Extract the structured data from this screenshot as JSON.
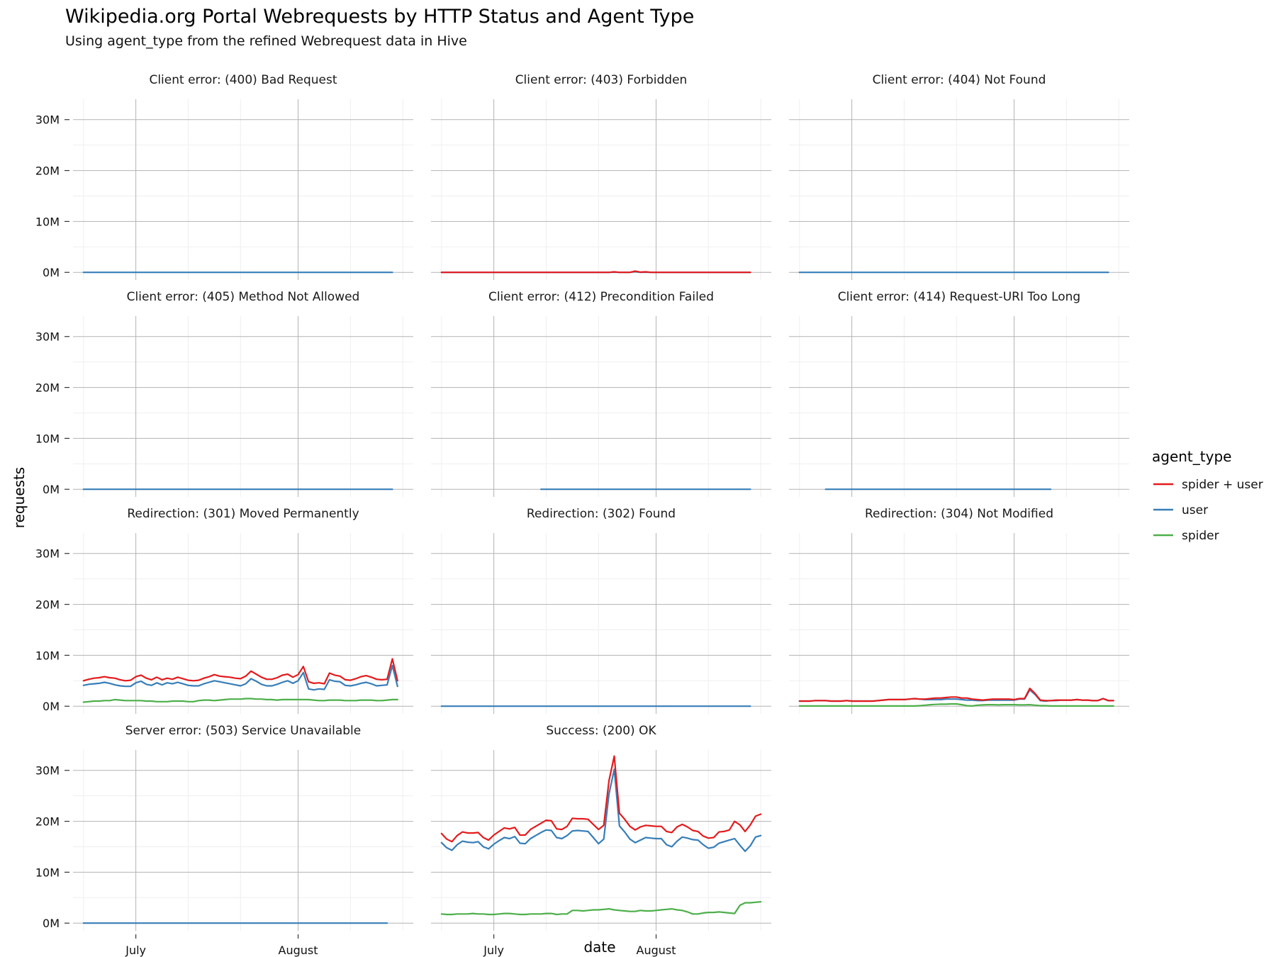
{
  "chart_data": {
    "type": "line",
    "title": "Wikipedia.org Portal Webrequests by HTTP Status and Agent Type",
    "subtitle": "Using agent_type from the refined Webrequest data in Hive",
    "xlabel": "date",
    "ylabel": "requests",
    "x_ticks": [
      "July",
      "August"
    ],
    "y_ticks": [
      "0M",
      "10M",
      "20M",
      "30M"
    ],
    "ylim": [
      -1.5,
      34
    ],
    "xlim_days": [
      -12,
      53
    ],
    "grid": true,
    "legend": {
      "title": "agent_type",
      "placement": "right",
      "entries": [
        {
          "name": "spider + user",
          "color": "#e41a1c"
        },
        {
          "name": "user",
          "color": "#377eb8"
        },
        {
          "name": "spider",
          "color": "#4daf4a"
        }
      ]
    },
    "panels": [
      {
        "label": "Client error: (400) Bad Request",
        "start": -10,
        "series": {
          "user": [
            0,
            0,
            0,
            0,
            0,
            0,
            0,
            0,
            0,
            0,
            0,
            0,
            0,
            0,
            0,
            0,
            0,
            0,
            0,
            0,
            0,
            0,
            0,
            0,
            0,
            0,
            0,
            0,
            0,
            0,
            0,
            0,
            0,
            0,
            0,
            0,
            0,
            0,
            0,
            0,
            0,
            0,
            0,
            0,
            0,
            0,
            0,
            0,
            0,
            0,
            0,
            0,
            0,
            0,
            0,
            0,
            0,
            0,
            0,
            0
          ]
        }
      },
      {
        "label": "Client error: (403) Forbidden",
        "start": -10,
        "series": {
          "spider + user": [
            0,
            0,
            0,
            0,
            0,
            0,
            0,
            0,
            0,
            0,
            0,
            0,
            0,
            0,
            0,
            0,
            0,
            0,
            0,
            0,
            0,
            0,
            0,
            0,
            0,
            0,
            0,
            0,
            0,
            0,
            0,
            0,
            0,
            0.1,
            0,
            0,
            0,
            0.25,
            0.05,
            0.1,
            0,
            0,
            0,
            0,
            0,
            0,
            0,
            0,
            0,
            0,
            0,
            0,
            0,
            0,
            0,
            0,
            0,
            0,
            0,
            0
          ],
          "user": [
            0,
            0,
            0,
            0,
            0,
            0,
            0,
            0,
            0,
            0,
            0,
            0,
            0,
            0,
            0,
            0,
            0,
            0,
            0,
            0,
            0,
            0,
            0,
            0,
            0,
            0,
            0,
            0,
            0,
            0,
            0,
            0,
            0,
            0.05,
            0,
            0,
            0,
            0.15,
            0,
            0.05,
            0,
            0,
            0,
            0,
            0,
            0,
            0,
            0,
            0,
            0,
            0,
            0,
            0,
            0,
            0,
            0,
            0,
            0,
            0,
            0
          ]
        }
      },
      {
        "label": "Client error: (404) Not Found",
        "start": -10,
        "series": {
          "user": [
            0,
            0,
            0,
            0,
            0,
            0,
            0,
            0,
            0,
            0,
            0,
            0,
            0,
            0,
            0,
            0,
            0,
            0,
            0,
            0,
            0,
            0,
            0,
            0,
            0,
            0,
            0,
            0,
            0,
            0,
            0,
            0,
            0,
            0,
            0,
            0,
            0,
            0,
            0,
            0,
            0,
            0,
            0,
            0,
            0,
            0,
            0,
            0,
            0,
            0,
            0,
            0,
            0,
            0,
            0,
            0,
            0,
            0,
            0,
            0
          ]
        }
      },
      {
        "label": "Client error: (405) Method Not Allowed",
        "start": -10,
        "series": {
          "user": [
            0,
            0,
            0,
            0,
            0,
            0,
            0,
            0,
            0,
            0,
            0,
            0,
            0,
            0,
            0,
            0,
            0,
            0,
            0,
            0,
            0,
            0,
            0,
            0,
            0,
            0,
            0,
            0,
            0,
            0,
            0,
            0,
            0,
            0,
            0,
            0,
            0,
            0,
            0,
            0,
            0,
            0,
            0,
            0,
            0,
            0,
            0,
            0,
            0,
            0,
            0,
            0,
            0,
            0,
            0,
            0,
            0,
            0,
            0,
            0
          ]
        }
      },
      {
        "label": "Client error: (412) Precondition Failed",
        "start": 9,
        "series": {
          "user": [
            0,
            0,
            0,
            0,
            0,
            0,
            0,
            0,
            0,
            0,
            0,
            0,
            0,
            0,
            0,
            0,
            0,
            0,
            0,
            0,
            0,
            0,
            0,
            0,
            0,
            0,
            0,
            0,
            0,
            0,
            0,
            0,
            0,
            0,
            0,
            0,
            0,
            0,
            0,
            0,
            0
          ]
        }
      },
      {
        "label": "Client error: (414) Request-URI Too Long",
        "start": -5,
        "series": {
          "user": [
            0,
            0,
            0,
            0,
            0,
            0,
            0,
            0,
            0,
            0,
            0,
            0,
            0,
            0,
            0,
            0,
            0,
            0,
            0,
            0,
            0,
            0,
            0,
            0,
            0,
            0,
            0,
            0,
            0,
            0,
            0,
            0,
            0,
            0,
            0,
            0,
            0,
            0,
            0,
            0,
            0,
            0,
            0,
            0
          ]
        }
      },
      {
        "label": "Redirection: (301) Moved Permanently",
        "start": -10,
        "series": {
          "spider + user": [
            5.0,
            5.3,
            5.5,
            5.6,
            5.8,
            5.6,
            5.5,
            5.2,
            5.0,
            5.1,
            5.8,
            6.1,
            5.5,
            5.2,
            5.7,
            5.2,
            5.5,
            5.3,
            5.7,
            5.4,
            5.1,
            5.0,
            5.1,
            5.5,
            5.8,
            6.2,
            5.9,
            5.8,
            5.7,
            5.5,
            5.4,
            5.9,
            6.9,
            6.3,
            5.7,
            5.3,
            5.3,
            5.6,
            6.1,
            6.3,
            5.7,
            6.2,
            7.8,
            4.8,
            4.5,
            4.6,
            4.4,
            6.5,
            6.1,
            5.9,
            5.2,
            5.1,
            5.4,
            5.8,
            6.0,
            5.7,
            5.3,
            5.2,
            5.3,
            9.3,
            5.0
          ],
          "user": [
            4.1,
            4.3,
            4.4,
            4.5,
            4.7,
            4.5,
            4.2,
            4.0,
            3.9,
            3.9,
            4.6,
            4.9,
            4.3,
            4.1,
            4.6,
            4.2,
            4.6,
            4.4,
            4.7,
            4.4,
            4.1,
            4.0,
            4.0,
            4.4,
            4.7,
            5.0,
            4.8,
            4.6,
            4.4,
            4.2,
            4.0,
            4.4,
            5.4,
            4.9,
            4.3,
            4.0,
            4.0,
            4.3,
            4.7,
            5.0,
            4.5,
            5.0,
            6.6,
            3.4,
            3.2,
            3.4,
            3.3,
            5.2,
            4.9,
            4.8,
            4.1,
            4.0,
            4.2,
            4.5,
            4.7,
            4.4,
            4.0,
            4.1,
            4.2,
            8.0,
            3.9
          ],
          "spider": [
            0.8,
            0.9,
            1.0,
            1.0,
            1.1,
            1.1,
            1.3,
            1.2,
            1.1,
            1.1,
            1.1,
            1.1,
            1.0,
            1.0,
            0.9,
            0.9,
            0.9,
            1.0,
            1.0,
            1.0,
            0.9,
            0.9,
            1.1,
            1.2,
            1.2,
            1.1,
            1.2,
            1.3,
            1.4,
            1.4,
            1.4,
            1.5,
            1.5,
            1.4,
            1.4,
            1.3,
            1.3,
            1.2,
            1.3,
            1.3,
            1.3,
            1.3,
            1.3,
            1.3,
            1.2,
            1.1,
            1.1,
            1.2,
            1.2,
            1.2,
            1.1,
            1.1,
            1.1,
            1.2,
            1.2,
            1.2,
            1.1,
            1.1,
            1.2,
            1.3,
            1.3
          ]
        }
      },
      {
        "label": "Redirection: (302) Found",
        "start": -10,
        "series": {
          "user": [
            0,
            0,
            0,
            0,
            0,
            0,
            0,
            0,
            0,
            0,
            0,
            0,
            0,
            0,
            0,
            0,
            0,
            0,
            0,
            0,
            0,
            0,
            0,
            0,
            0,
            0,
            0,
            0,
            0,
            0,
            0,
            0,
            0,
            0,
            0,
            0,
            0,
            0,
            0,
            0,
            0,
            0,
            0,
            0,
            0,
            0,
            0,
            0,
            0,
            0,
            0,
            0,
            0,
            0,
            0,
            0,
            0,
            0,
            0,
            0
          ]
        }
      },
      {
        "label": "Redirection: (304) Not Modified",
        "start": -10,
        "series": {
          "spider + user": [
            1.0,
            1.0,
            1.0,
            1.1,
            1.1,
            1.1,
            1.0,
            1.0,
            1.0,
            1.1,
            1.0,
            1.0,
            1.0,
            1.0,
            1.0,
            1.1,
            1.2,
            1.3,
            1.3,
            1.3,
            1.3,
            1.4,
            1.5,
            1.4,
            1.4,
            1.5,
            1.6,
            1.6,
            1.7,
            1.8,
            1.8,
            1.6,
            1.6,
            1.4,
            1.3,
            1.2,
            1.3,
            1.4,
            1.4,
            1.4,
            1.4,
            1.3,
            1.5,
            1.5,
            3.5,
            2.5,
            1.2,
            1.1,
            1.1,
            1.2,
            1.2,
            1.2,
            1.2,
            1.3,
            1.2,
            1.2,
            1.1,
            1.1,
            1.5,
            1.1,
            1.1
          ],
          "user": [
            1.0,
            1.0,
            1.0,
            1.1,
            1.1,
            1.1,
            1.0,
            1.0,
            1.0,
            1.1,
            1.0,
            1.0,
            1.0,
            1.0,
            1.0,
            1.1,
            1.2,
            1.3,
            1.3,
            1.3,
            1.3,
            1.4,
            1.5,
            1.4,
            1.3,
            1.3,
            1.3,
            1.3,
            1.4,
            1.4,
            1.4,
            1.3,
            1.2,
            1.2,
            1.1,
            1.1,
            1.2,
            1.2,
            1.2,
            1.2,
            1.2,
            1.2,
            1.4,
            1.4,
            3.2,
            2.3,
            1.1,
            1.0,
            1.1,
            1.1,
            1.2,
            1.2,
            1.2,
            1.3,
            1.2,
            1.2,
            1.1,
            1.1,
            1.5,
            1.1,
            1.1
          ],
          "spider": [
            0.05,
            0.05,
            0.05,
            0.05,
            0.05,
            0.05,
            0.05,
            0.05,
            0.05,
            0.05,
            0.05,
            0.05,
            0.05,
            0.05,
            0.05,
            0.05,
            0.05,
            0.05,
            0.05,
            0.05,
            0.05,
            0.05,
            0.05,
            0.1,
            0.2,
            0.3,
            0.35,
            0.4,
            0.4,
            0.45,
            0.45,
            0.3,
            0.1,
            0.05,
            0.2,
            0.25,
            0.3,
            0.3,
            0.25,
            0.3,
            0.3,
            0.3,
            0.25,
            0.25,
            0.3,
            0.2,
            0.1,
            0.1,
            0.05,
            0.05,
            0.05,
            0.05,
            0.05,
            0.05,
            0.05,
            0.05,
            0.05,
            0.05,
            0.05,
            0.05,
            0.05
          ]
        }
      },
      {
        "label": "Server error: (503) Service Unavailable",
        "start": -10,
        "series": {
          "user": [
            0,
            0,
            0,
            0,
            0,
            0,
            0,
            0,
            0,
            0,
            0,
            0,
            0,
            0,
            0,
            0,
            0,
            0,
            0,
            0,
            0,
            0,
            0,
            0,
            0,
            0,
            0,
            0,
            0,
            0,
            0,
            0,
            0,
            0,
            0,
            0,
            0,
            0,
            0,
            0,
            0,
            0,
            0,
            0,
            0,
            0,
            0,
            0,
            0,
            0,
            0,
            0,
            0,
            0,
            0,
            0,
            0,
            0,
            0
          ]
        }
      },
      {
        "label": "Success: (200) OK",
        "start": -10,
        "series": {
          "spider + user": [
            17.6,
            16.5,
            16.0,
            17.2,
            17.9,
            17.7,
            17.7,
            17.8,
            16.8,
            16.3,
            17.3,
            18.0,
            18.7,
            18.5,
            18.8,
            17.3,
            17.3,
            18.4,
            19.0,
            19.6,
            20.2,
            20.1,
            18.5,
            18.4,
            19.0,
            20.6,
            20.5,
            20.5,
            20.4,
            19.4,
            18.4,
            19.2,
            28.0,
            32.8,
            21.6,
            20.4,
            19.0,
            18.3,
            18.9,
            19.2,
            19.1,
            19.0,
            19.0,
            18.0,
            17.8,
            18.9,
            19.4,
            18.9,
            18.2,
            18.0,
            17.1,
            16.7,
            16.8,
            17.9,
            18.0,
            18.3,
            20.0,
            19.3,
            18.0,
            19.3,
            21.0,
            21.4
          ],
          "user": [
            15.8,
            14.8,
            14.3,
            15.4,
            16.1,
            15.9,
            15.8,
            16.0,
            15.0,
            14.6,
            15.5,
            16.2,
            16.8,
            16.6,
            17.0,
            15.7,
            15.6,
            16.6,
            17.2,
            17.8,
            18.3,
            18.2,
            16.8,
            16.6,
            17.2,
            18.1,
            18.2,
            18.1,
            18.0,
            16.8,
            15.6,
            16.5,
            25.4,
            30.2,
            19.1,
            17.9,
            16.5,
            15.8,
            16.3,
            16.8,
            16.7,
            16.6,
            16.6,
            15.4,
            15.0,
            16.1,
            16.9,
            16.7,
            16.4,
            16.3,
            15.4,
            14.7,
            14.9,
            15.7,
            16.0,
            16.3,
            16.6,
            15.3,
            14.1,
            15.2,
            16.9,
            17.2
          ],
          "spider": [
            1.8,
            1.7,
            1.7,
            1.8,
            1.8,
            1.8,
            1.9,
            1.8,
            1.8,
            1.7,
            1.7,
            1.8,
            1.9,
            1.9,
            1.8,
            1.7,
            1.7,
            1.8,
            1.8,
            1.8,
            1.9,
            1.9,
            1.7,
            1.8,
            1.8,
            2.5,
            2.5,
            2.4,
            2.5,
            2.6,
            2.6,
            2.7,
            2.8,
            2.6,
            2.5,
            2.4,
            2.3,
            2.3,
            2.5,
            2.4,
            2.4,
            2.5,
            2.6,
            2.7,
            2.8,
            2.6,
            2.5,
            2.2,
            1.8,
            1.8,
            2.0,
            2.1,
            2.1,
            2.2,
            2.1,
            2.0,
            1.9,
            3.5,
            4.0,
            4.0,
            4.1,
            4.2
          ]
        }
      }
    ]
  }
}
